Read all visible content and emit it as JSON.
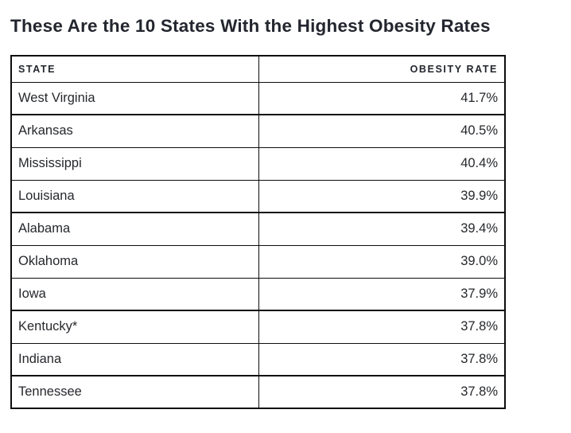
{
  "page": {
    "title": "These Are the 10 States With the Highest Obesity Rates"
  },
  "colors": {
    "border": "#0d0d0d",
    "title_text": "#23262e",
    "body_text": "#26282c",
    "background": "#ffffff"
  },
  "table": {
    "columns": {
      "state_label": "STATE",
      "rate_label": "OBESITY RATE"
    },
    "rows": [
      {
        "state": "West Virginia",
        "rate": "41.7%"
      },
      {
        "state": "Arkansas",
        "rate": "40.5%"
      },
      {
        "state": "Mississippi",
        "rate": "40.4%"
      },
      {
        "state": "Louisiana",
        "rate": "39.9%"
      },
      {
        "state": "Alabama",
        "rate": "39.4%"
      },
      {
        "state": "Oklahoma",
        "rate": "39.0%"
      },
      {
        "state": "Iowa",
        "rate": "37.9%"
      },
      {
        "state": "Kentucky*",
        "rate": "37.8%"
      },
      {
        "state": "Indiana",
        "rate": "37.8%"
      },
      {
        "state": "Tennessee",
        "rate": "37.8%"
      }
    ]
  },
  "chart_data": {
    "type": "table",
    "title": "These Are the 10 States With the Highest Obesity Rates",
    "columns": [
      "STATE",
      "OBESITY RATE"
    ],
    "categories": [
      "West Virginia",
      "Arkansas",
      "Mississippi",
      "Louisiana",
      "Alabama",
      "Oklahoma",
      "Iowa",
      "Kentucky*",
      "Indiana",
      "Tennessee"
    ],
    "values": [
      41.7,
      40.5,
      40.4,
      39.9,
      39.4,
      39.0,
      37.9,
      37.8,
      37.8,
      37.8
    ],
    "value_unit": "percent",
    "sort_order": "descending",
    "notes": "Kentucky entry is marked with an asterisk"
  }
}
